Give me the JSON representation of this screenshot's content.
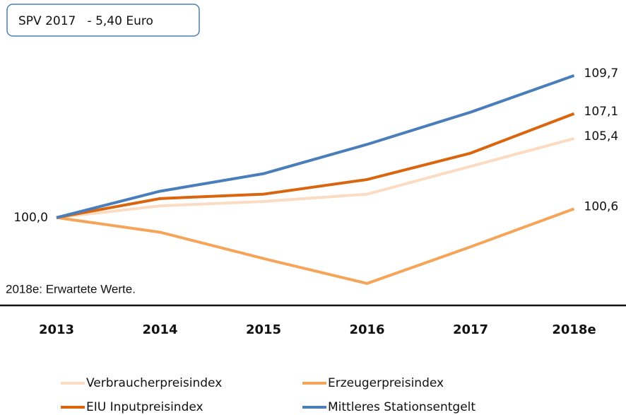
{
  "chart_data": {
    "type": "line",
    "title": "SPV 2017   - 5,40 Euro",
    "note": "2018e: Erwartete Werte.",
    "categories": [
      "2013",
      "2014",
      "2015",
      "2016",
      "2017",
      "2018e"
    ],
    "ylim": [
      94,
      111
    ],
    "series": [
      {
        "name": "Verbraucherpreisindex",
        "color": "#fbdcc2",
        "values": [
          100.0,
          100.8,
          101.1,
          101.6,
          103.5,
          105.4
        ],
        "value_labels": [
          "100,0",
          null,
          null,
          null,
          null,
          "105,4"
        ]
      },
      {
        "name": "Erzeugerpreisindex",
        "color": "#f5a55a",
        "values": [
          100.0,
          99.0,
          97.2,
          95.5,
          98.0,
          100.6
        ],
        "value_labels": [
          null,
          null,
          null,
          null,
          null,
          "100,6"
        ]
      },
      {
        "name": "EIU Inputpreisindex",
        "color": "#d9650f",
        "values": [
          100.0,
          101.3,
          101.6,
          102.6,
          104.4,
          107.1
        ],
        "value_labels": [
          null,
          null,
          null,
          null,
          null,
          "107,1"
        ]
      },
      {
        "name": "Mittleres Stationsentgelt",
        "color": "#4a7ebb",
        "values": [
          100.0,
          101.8,
          103.0,
          105.0,
          107.2,
          109.7
        ],
        "value_labels": [
          null,
          null,
          null,
          null,
          null,
          "109,7"
        ]
      }
    ]
  }
}
